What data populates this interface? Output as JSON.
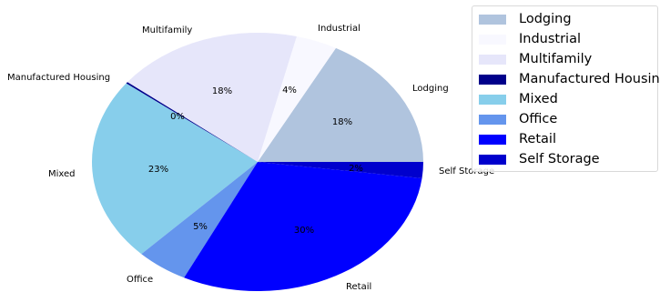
{
  "chart_data": {
    "type": "pie",
    "categories": [
      "Lodging",
      "Industrial",
      "Multifamily",
      "Manufactured Housing",
      "Mixed",
      "Office",
      "Retail",
      "Self Storage"
    ],
    "values": [
      18,
      4,
      18,
      0,
      23,
      5,
      30,
      2
    ],
    "value_labels": [
      "18%",
      "4%",
      "18%",
      "0%",
      "23%",
      "5%",
      "30%",
      "2%"
    ],
    "colors": [
      "#b0c4de",
      "#f8f8ff",
      "#e6e6fa",
      "#00008b",
      "#87ceeb",
      "#6495ed",
      "#0000ff",
      "#0000cd"
    ],
    "legend_position": "top-right"
  },
  "legend": {
    "items": [
      {
        "label": "Lodging",
        "color": "#b0c4de"
      },
      {
        "label": "Industrial",
        "color": "#f8f8ff"
      },
      {
        "label": "Multifamily",
        "color": "#e6e6fa"
      },
      {
        "label": "Manufactured Housing",
        "color": "#00008b"
      },
      {
        "label": "Mixed",
        "color": "#87ceeb"
      },
      {
        "label": "Office",
        "color": "#6495ed"
      },
      {
        "label": "Retail",
        "color": "#0000ff"
      },
      {
        "label": "Self Storage",
        "color": "#0000cd"
      }
    ]
  }
}
